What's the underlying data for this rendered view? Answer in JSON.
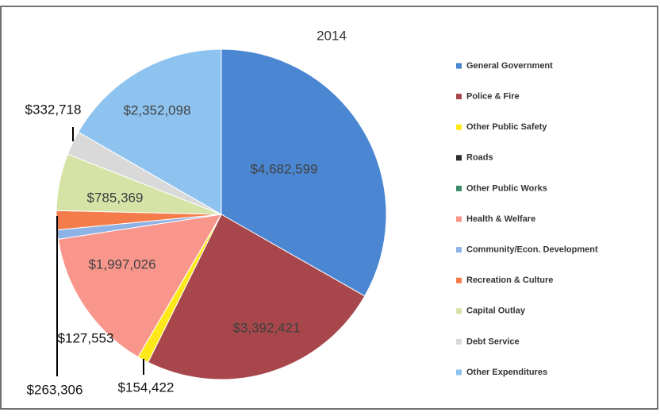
{
  "chart_data": {
    "type": "pie",
    "title": "2014",
    "categories": [
      "General Government",
      "Police & Fire",
      "Other Public Safety",
      "Roads",
      "Other Public Works",
      "Health & Welfare",
      "Community/Econ. Development",
      "Recreation & Culture",
      "Capital Outlay",
      "Debt Service",
      "Other Expenditures"
    ],
    "values": [
      4682599,
      3392421,
      154422,
      0,
      0,
      1997026,
      127553,
      263306,
      785369,
      332718,
      2352098
    ],
    "value_labels": [
      "$4,682,599",
      "$3,392,421",
      "$154,422",
      null,
      null,
      "$1,997,026",
      "$127,553",
      "$263,306",
      "$785,369",
      "$332,718",
      "$2,352,098"
    ],
    "colors": [
      "#4a86d2",
      "#a8474b",
      "#ffe81a",
      "#2e2e2e",
      "#3c8c6c",
      "#f8968c",
      "#8db2e6",
      "#f47c4a",
      "#d6e3a6",
      "#d9d9d9",
      "#8ec3f0"
    ],
    "legend": "right"
  }
}
